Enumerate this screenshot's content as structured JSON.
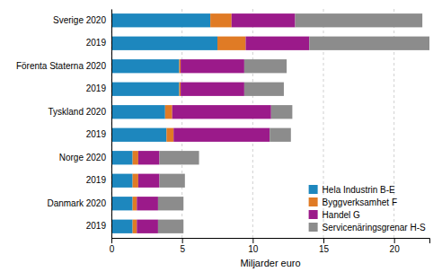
{
  "chart_data": {
    "type": "bar",
    "orientation": "horizontal",
    "stacked": true,
    "categories": [
      "Sverige 2020",
      "2019",
      "Förenta Staterna 2020",
      "2019",
      "Tyskland 2020",
      "2019",
      "Norge 2020",
      "2019",
      "Danmark 2020",
      "2019"
    ],
    "series": [
      {
        "name": "Hela Industrin B-E",
        "color": "#1d87be",
        "values": [
          7.0,
          7.5,
          4.8,
          4.8,
          3.8,
          3.9,
          1.5,
          1.5,
          1.5,
          1.5
        ]
      },
      {
        "name": "Byggverksamhet F",
        "color": "#e07b25",
        "values": [
          1.5,
          2.0,
          0.1,
          0.1,
          0.5,
          0.5,
          0.4,
          0.4,
          0.3,
          0.3
        ]
      },
      {
        "name": "Handel G",
        "color": "#9b1a8a",
        "values": [
          4.5,
          4.5,
          4.5,
          4.5,
          7.0,
          6.8,
          1.5,
          1.5,
          1.5,
          1.5
        ]
      },
      {
        "name": "Servicenäringsgrenar H-S",
        "color": "#8c8c8c",
        "values": [
          9.0,
          8.5,
          3.0,
          2.8,
          1.5,
          1.5,
          2.8,
          1.8,
          1.8,
          1.8
        ]
      }
    ],
    "xlabel": "Miljarder euro",
    "xlim": [
      0,
      22.5
    ],
    "xticks": [
      0,
      5,
      10,
      15,
      20
    ],
    "grid": true,
    "legend": "lower right"
  }
}
